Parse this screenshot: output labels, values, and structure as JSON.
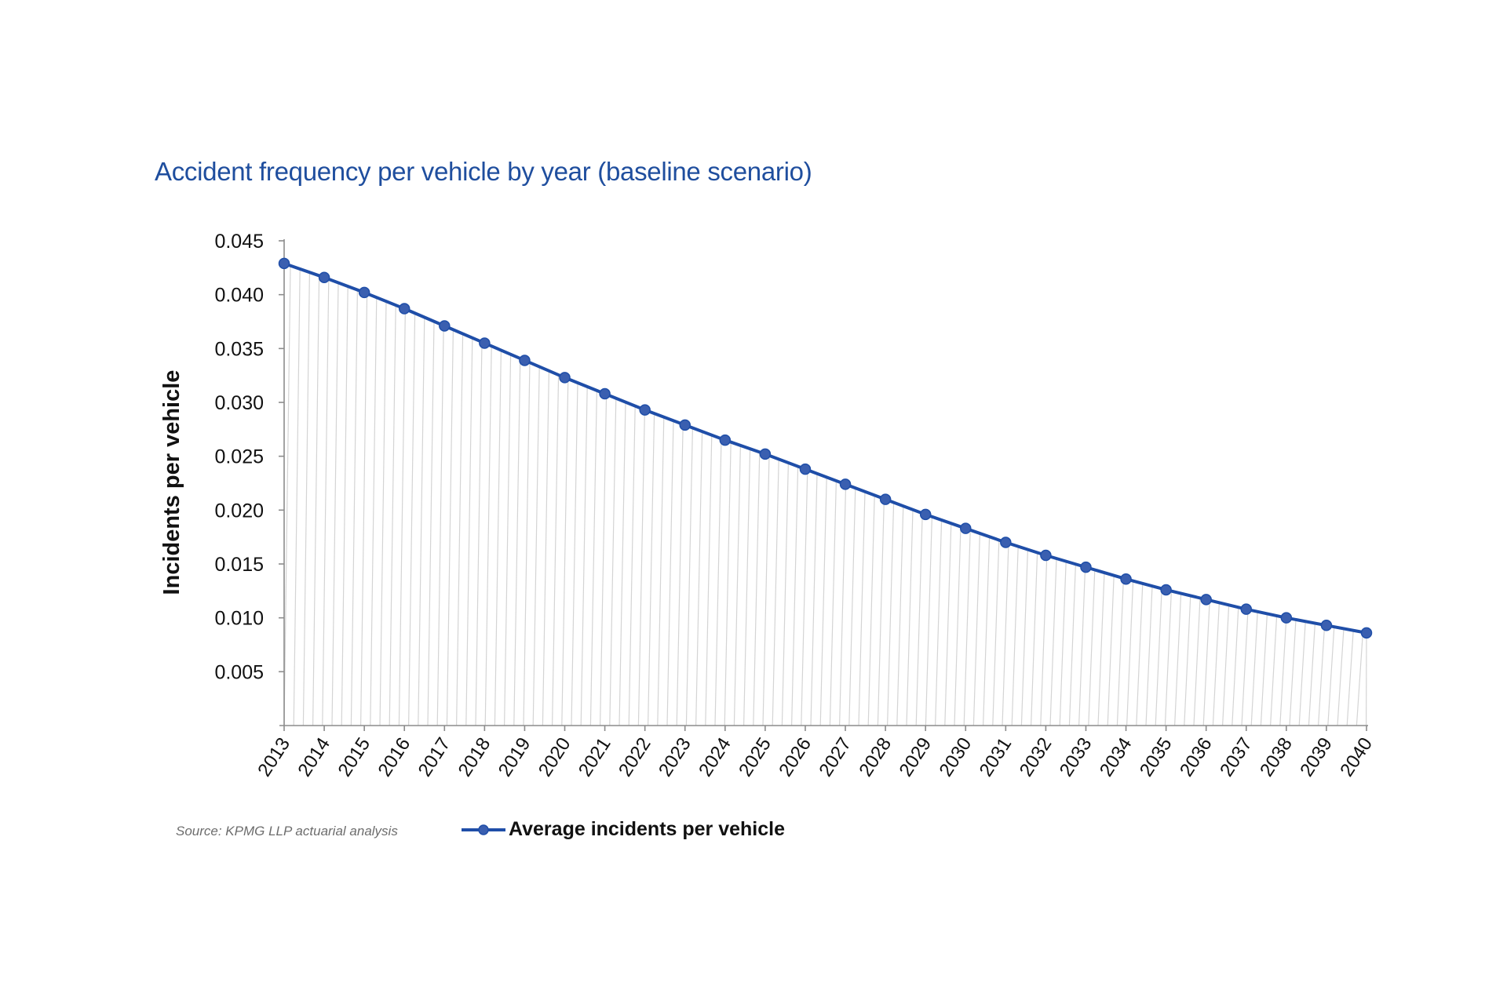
{
  "title": "Accident frequency per vehicle by year (baseline scenario)",
  "source": "Source: KPMG LLP actuarial analysis",
  "colors": {
    "series": "#1f4ea8",
    "marker": "#3a5fb0",
    "title": "#1f4e9e",
    "hatch": "#d4d4d4",
    "axis": "#8c8c8c"
  },
  "chart_data": {
    "type": "line",
    "title": "Accident frequency per vehicle by year (baseline scenario)",
    "xlabel": "",
    "ylabel": "Incidents per vehicle",
    "categories": [
      "2013",
      "2014",
      "2015",
      "2016",
      "2017",
      "2018",
      "2019",
      "2020",
      "2021",
      "2022",
      "2023",
      "2024",
      "2025",
      "2026",
      "2027",
      "2028",
      "2029",
      "2030",
      "2031",
      "2032",
      "2033",
      "2034",
      "2035",
      "2036",
      "2037",
      "2038",
      "2039",
      "2040"
    ],
    "series": [
      {
        "name": "Average incidents per vehicle",
        "values": [
          0.0429,
          0.0416,
          0.0402,
          0.0387,
          0.0371,
          0.0355,
          0.0339,
          0.0323,
          0.0308,
          0.0293,
          0.0279,
          0.0265,
          0.0252,
          0.0238,
          0.0224,
          0.021,
          0.0196,
          0.0183,
          0.017,
          0.0158,
          0.0147,
          0.0136,
          0.0126,
          0.0117,
          0.0108,
          0.01,
          0.0093,
          0.0086
        ]
      }
    ],
    "ylim": [
      0,
      0.045
    ],
    "yticks": [
      "0.005",
      "0.010",
      "0.015",
      "0.020",
      "0.025",
      "0.030",
      "0.035",
      "0.040",
      "0.045"
    ],
    "fill": "hatched area under line",
    "grid": false,
    "legend": "bottom"
  }
}
